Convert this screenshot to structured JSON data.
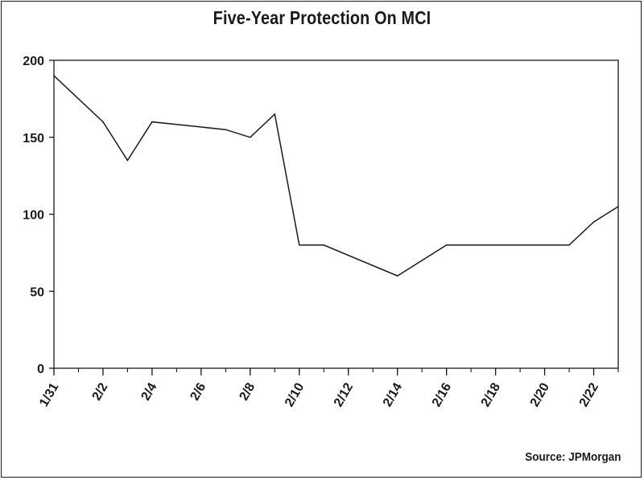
{
  "chart_data": {
    "type": "line",
    "title": "Five-Year Protection On MCI",
    "xlabel": "",
    "ylabel": "",
    "ylim": [
      0,
      200
    ],
    "yticks": [
      0,
      50,
      100,
      150,
      200
    ],
    "xtick_labels": [
      "1/31",
      "2/2",
      "2/4",
      "2/6",
      "2/8",
      "2/10",
      "2/12",
      "2/14",
      "2/16",
      "2/18",
      "2/20",
      "2/22"
    ],
    "x_domain": [
      "1/31",
      "2/23"
    ],
    "grid": false,
    "series": [
      {
        "points": [
          {
            "x": "1/31",
            "y": 190
          },
          {
            "x": "2/2",
            "y": 160
          },
          {
            "x": "2/3",
            "y": 135
          },
          {
            "x": "2/4",
            "y": 160
          },
          {
            "x": "2/7",
            "y": 155
          },
          {
            "x": "2/8",
            "y": 150
          },
          {
            "x": "2/9",
            "y": 165
          },
          {
            "x": "2/10",
            "y": 80
          },
          {
            "x": "2/11",
            "y": 80
          },
          {
            "x": "2/14",
            "y": 60
          },
          {
            "x": "2/16",
            "y": 80
          },
          {
            "x": "2/21",
            "y": 80
          },
          {
            "x": "2/22",
            "y": 95
          },
          {
            "x": "2/23",
            "y": 105
          }
        ]
      }
    ],
    "source": "Source: JPMorgan"
  }
}
